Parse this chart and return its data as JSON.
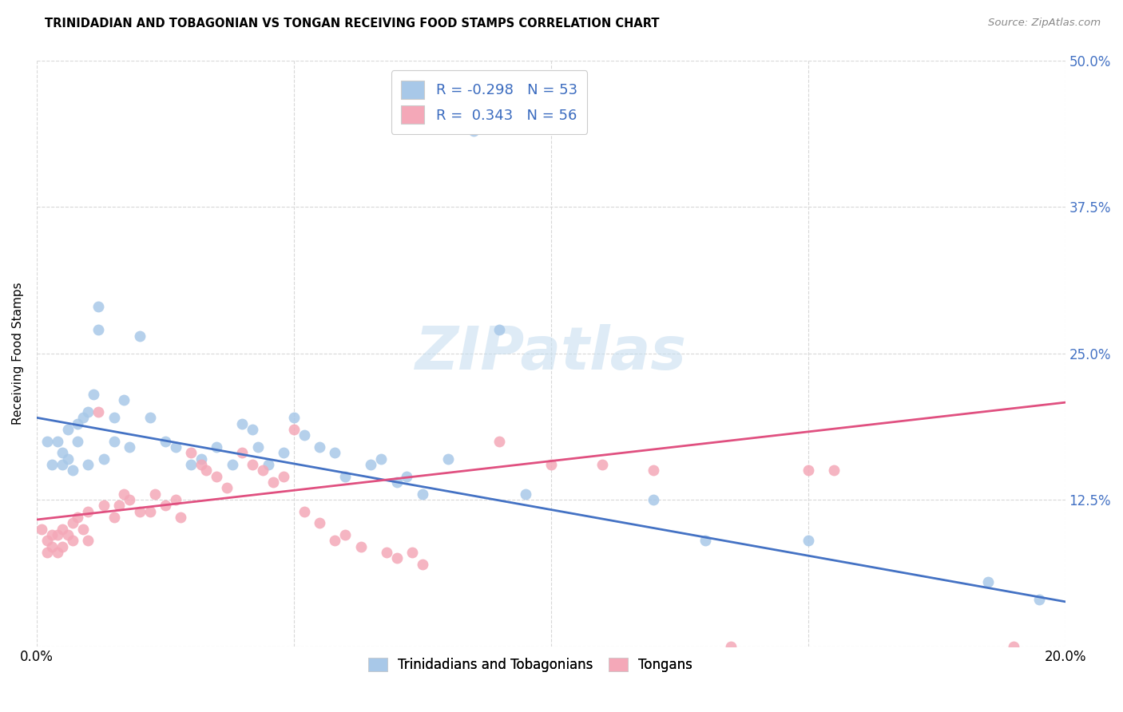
{
  "title": "TRINIDADIAN AND TOBAGONIAN VS TONGAN RECEIVING FOOD STAMPS CORRELATION CHART",
  "source": "Source: ZipAtlas.com",
  "ylabel": "Receiving Food Stamps",
  "xlim": [
    0.0,
    0.2
  ],
  "ylim": [
    0.0,
    0.5
  ],
  "xticks": [
    0.0,
    0.05,
    0.1,
    0.15,
    0.2
  ],
  "xticklabels": [
    "0.0%",
    "",
    "",
    "",
    "20.0%"
  ],
  "yticks": [
    0.0,
    0.125,
    0.25,
    0.375,
    0.5
  ],
  "yticklabels_right": [
    "",
    "12.5%",
    "25.0%",
    "37.5%",
    "50.0%"
  ],
  "blue_color": "#a8c8e8",
  "pink_color": "#f4a8b8",
  "blue_line_color": "#4472c4",
  "pink_line_color": "#e05080",
  "legend_text_color": "#3a6bbf",
  "right_axis_color": "#4472c4",
  "watermark_color": "#c8dff0",
  "legend_blue_label": "R = -0.298   N = 53",
  "legend_pink_label": "R =  0.343   N = 56",
  "bottom_legend_blue": "Trinidadians and Tobagonians",
  "bottom_legend_pink": "Tongans",
  "background_color": "#ffffff",
  "grid_color": "#d8d8d8",
  "blue_line_x0": 0.0,
  "blue_line_y0": 0.195,
  "blue_line_x1": 0.2,
  "blue_line_y1": 0.038,
  "pink_line_x0": 0.0,
  "pink_line_y0": 0.108,
  "pink_line_x1": 0.2,
  "pink_line_y1": 0.208,
  "blue_points": [
    [
      0.002,
      0.175
    ],
    [
      0.003,
      0.155
    ],
    [
      0.004,
      0.175
    ],
    [
      0.005,
      0.165
    ],
    [
      0.005,
      0.155
    ],
    [
      0.006,
      0.185
    ],
    [
      0.006,
      0.16
    ],
    [
      0.007,
      0.15
    ],
    [
      0.008,
      0.19
    ],
    [
      0.008,
      0.175
    ],
    [
      0.009,
      0.195
    ],
    [
      0.01,
      0.2
    ],
    [
      0.01,
      0.155
    ],
    [
      0.011,
      0.215
    ],
    [
      0.012,
      0.29
    ],
    [
      0.012,
      0.27
    ],
    [
      0.013,
      0.16
    ],
    [
      0.015,
      0.195
    ],
    [
      0.015,
      0.175
    ],
    [
      0.017,
      0.21
    ],
    [
      0.018,
      0.17
    ],
    [
      0.02,
      0.265
    ],
    [
      0.022,
      0.195
    ],
    [
      0.025,
      0.175
    ],
    [
      0.027,
      0.17
    ],
    [
      0.03,
      0.155
    ],
    [
      0.032,
      0.16
    ],
    [
      0.035,
      0.17
    ],
    [
      0.038,
      0.155
    ],
    [
      0.04,
      0.19
    ],
    [
      0.042,
      0.185
    ],
    [
      0.043,
      0.17
    ],
    [
      0.045,
      0.155
    ],
    [
      0.048,
      0.165
    ],
    [
      0.05,
      0.195
    ],
    [
      0.052,
      0.18
    ],
    [
      0.055,
      0.17
    ],
    [
      0.058,
      0.165
    ],
    [
      0.06,
      0.145
    ],
    [
      0.065,
      0.155
    ],
    [
      0.067,
      0.16
    ],
    [
      0.07,
      0.14
    ],
    [
      0.072,
      0.145
    ],
    [
      0.075,
      0.13
    ],
    [
      0.08,
      0.16
    ],
    [
      0.085,
      0.44
    ],
    [
      0.09,
      0.27
    ],
    [
      0.095,
      0.13
    ],
    [
      0.12,
      0.125
    ],
    [
      0.13,
      0.09
    ],
    [
      0.15,
      0.09
    ],
    [
      0.185,
      0.055
    ],
    [
      0.195,
      0.04
    ]
  ],
  "pink_points": [
    [
      0.001,
      0.1
    ],
    [
      0.002,
      0.09
    ],
    [
      0.002,
      0.08
    ],
    [
      0.003,
      0.095
    ],
    [
      0.003,
      0.085
    ],
    [
      0.004,
      0.095
    ],
    [
      0.004,
      0.08
    ],
    [
      0.005,
      0.1
    ],
    [
      0.005,
      0.085
    ],
    [
      0.006,
      0.095
    ],
    [
      0.007,
      0.105
    ],
    [
      0.007,
      0.09
    ],
    [
      0.008,
      0.11
    ],
    [
      0.009,
      0.1
    ],
    [
      0.01,
      0.115
    ],
    [
      0.01,
      0.09
    ],
    [
      0.012,
      0.2
    ],
    [
      0.013,
      0.12
    ],
    [
      0.015,
      0.11
    ],
    [
      0.016,
      0.12
    ],
    [
      0.017,
      0.13
    ],
    [
      0.018,
      0.125
    ],
    [
      0.02,
      0.115
    ],
    [
      0.022,
      0.115
    ],
    [
      0.023,
      0.13
    ],
    [
      0.025,
      0.12
    ],
    [
      0.027,
      0.125
    ],
    [
      0.028,
      0.11
    ],
    [
      0.03,
      0.165
    ],
    [
      0.032,
      0.155
    ],
    [
      0.033,
      0.15
    ],
    [
      0.035,
      0.145
    ],
    [
      0.037,
      0.135
    ],
    [
      0.04,
      0.165
    ],
    [
      0.042,
      0.155
    ],
    [
      0.044,
      0.15
    ],
    [
      0.046,
      0.14
    ],
    [
      0.048,
      0.145
    ],
    [
      0.05,
      0.185
    ],
    [
      0.052,
      0.115
    ],
    [
      0.055,
      0.105
    ],
    [
      0.058,
      0.09
    ],
    [
      0.06,
      0.095
    ],
    [
      0.063,
      0.085
    ],
    [
      0.068,
      0.08
    ],
    [
      0.07,
      0.075
    ],
    [
      0.073,
      0.08
    ],
    [
      0.075,
      0.07
    ],
    [
      0.09,
      0.175
    ],
    [
      0.1,
      0.155
    ],
    [
      0.11,
      0.155
    ],
    [
      0.12,
      0.15
    ],
    [
      0.135,
      0.0
    ],
    [
      0.15,
      0.15
    ],
    [
      0.155,
      0.15
    ],
    [
      0.19,
      0.0
    ]
  ]
}
